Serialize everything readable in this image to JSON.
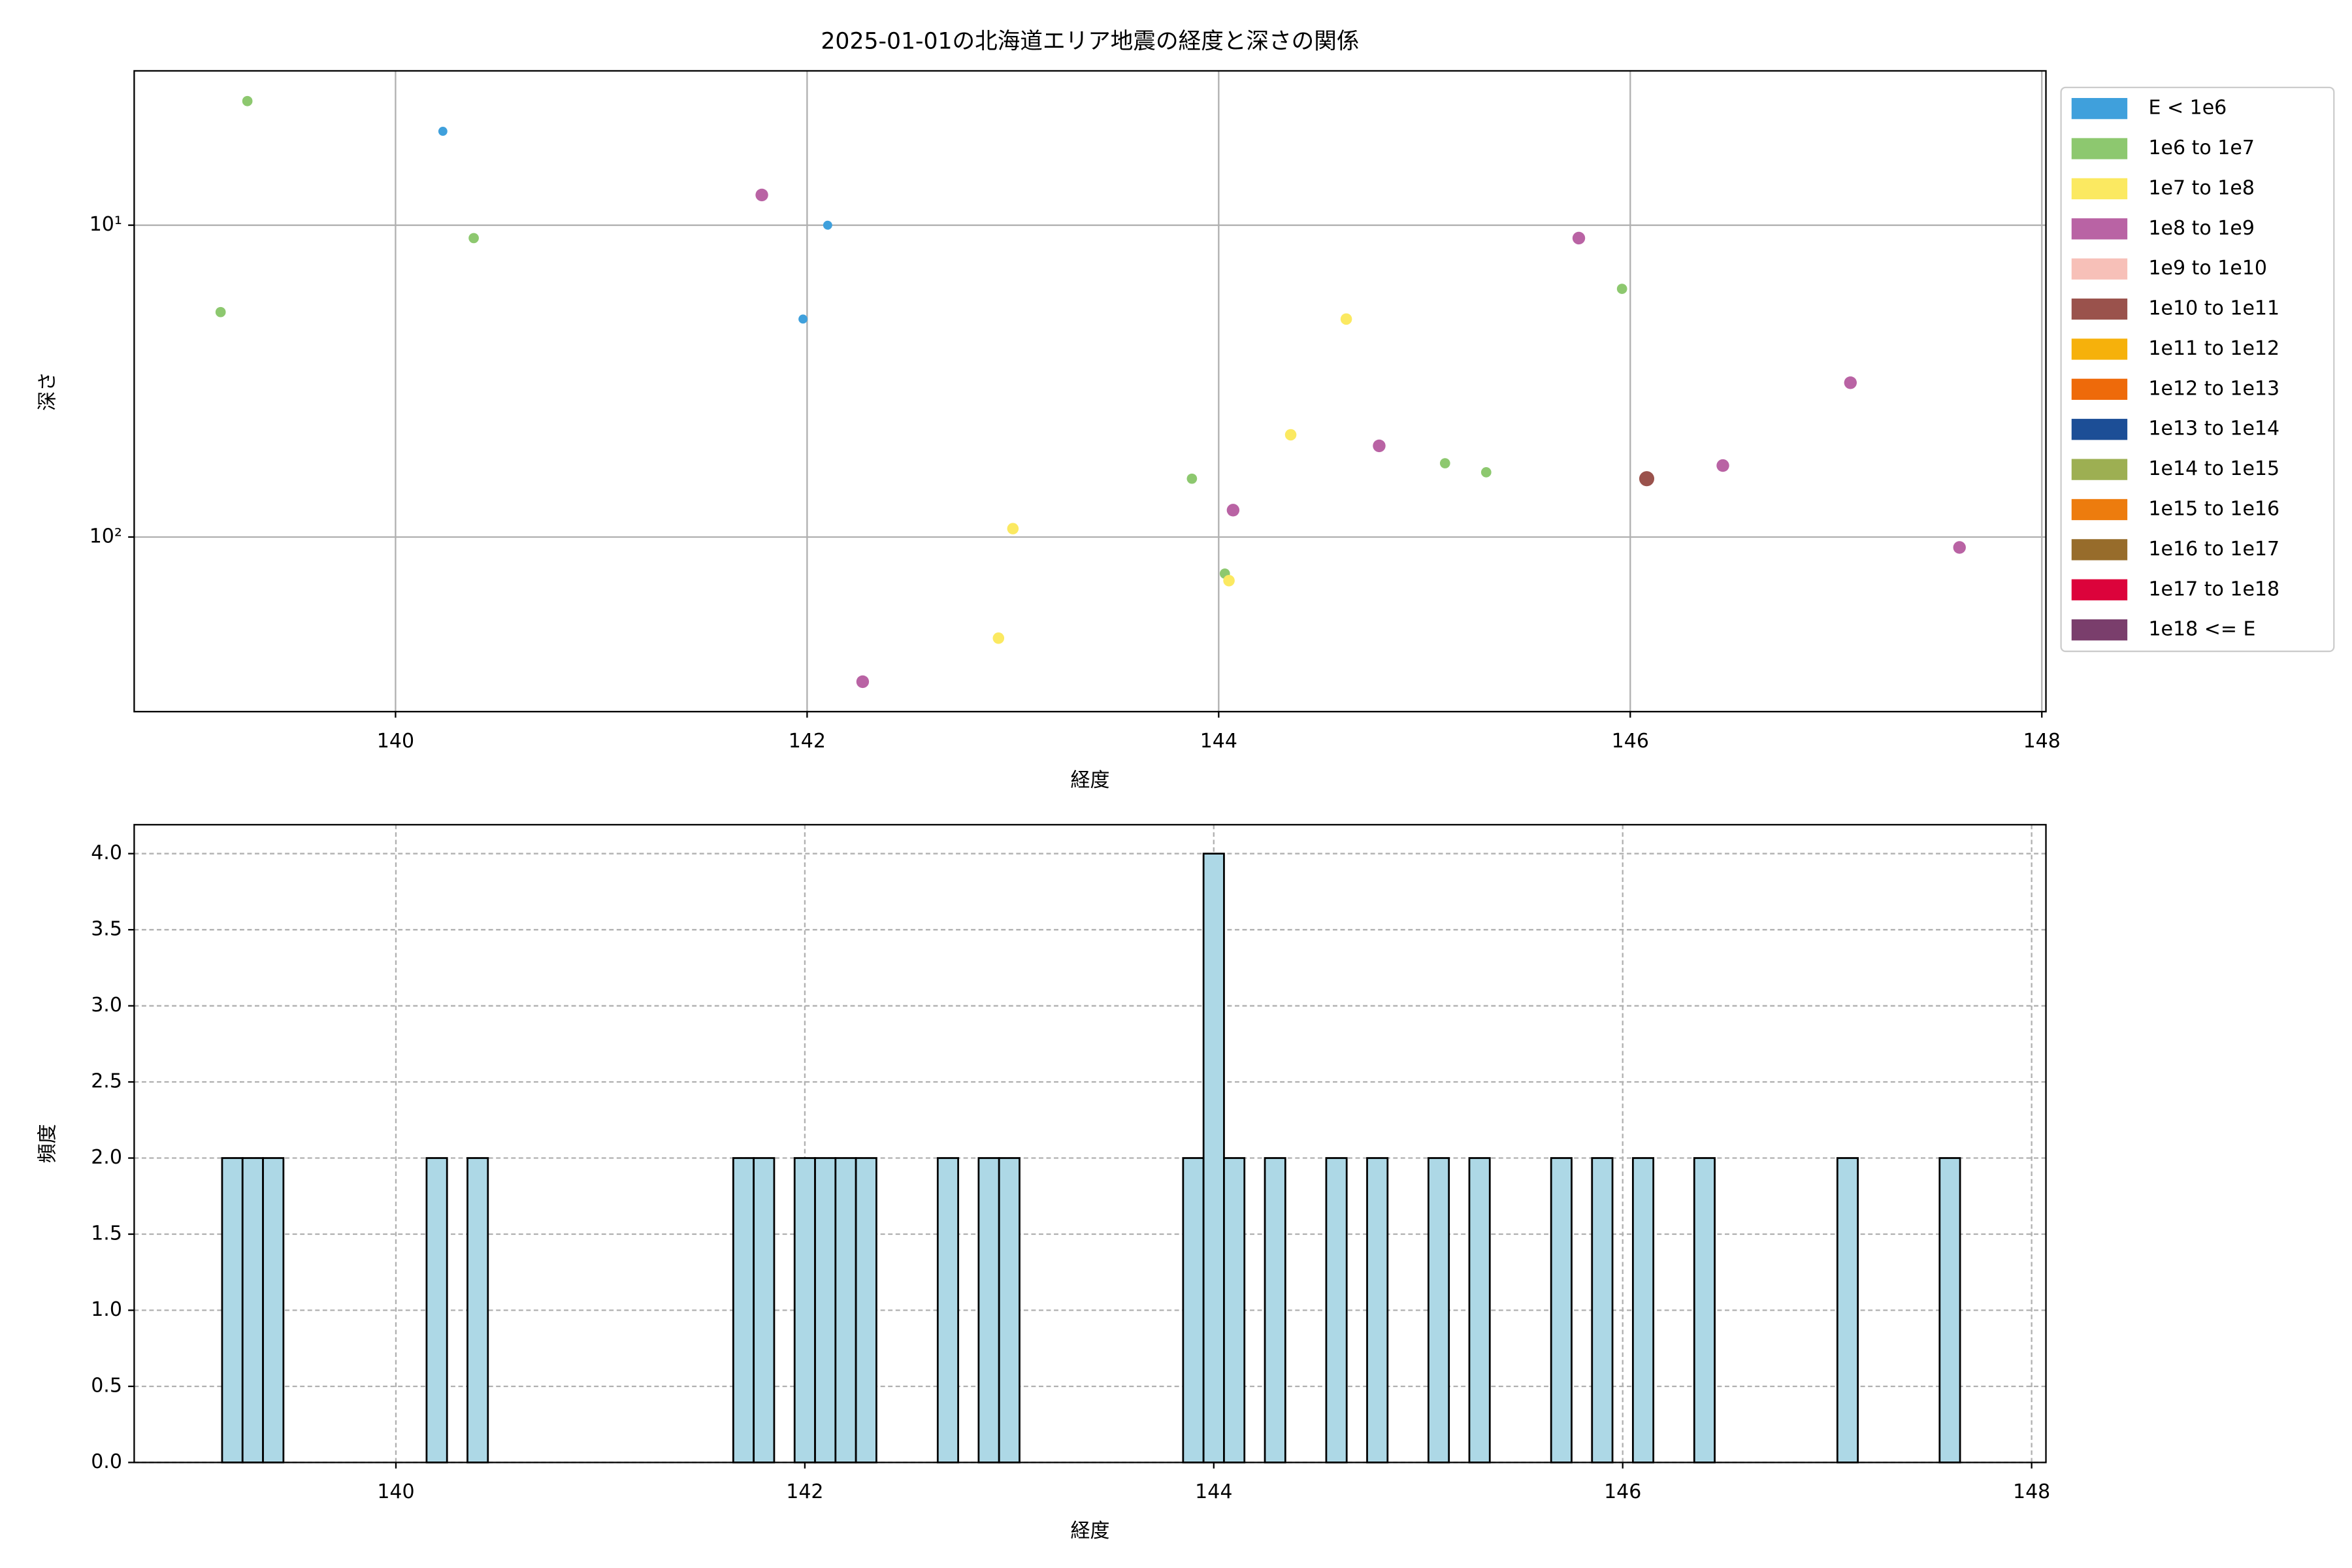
{
  "chart_data": [
    {
      "type": "scatter",
      "title": "2025-01-01の北海道エリア地震の経度と深さの関係",
      "xlabel": "経度",
      "ylabel": "深さ",
      "xlim": [
        138.73,
        148.02
      ],
      "xticks": [
        140,
        142,
        144,
        146,
        148
      ],
      "ylim": [
        3.2,
        363
      ],
      "yticks": [
        {
          "value": 10,
          "label": "10¹"
        },
        {
          "value": 100,
          "label": "10²"
        }
      ],
      "yscale": "log",
      "y_inverted": true,
      "grid": true,
      "legend": "outside-right",
      "series": [
        {
          "name": "E < 1e6",
          "color": "#3fa0dc",
          "x": [
            140.23,
            142.1,
            141.98
          ],
          "values": [
            5,
            10,
            20
          ]
        },
        {
          "name": "1e6 to 1e7",
          "color": "#8dc86f",
          "x": [
            139.28,
            139.15,
            140.38,
            143.87,
            144.03,
            145.1,
            145.3,
            145.96
          ],
          "values": [
            4,
            19,
            11,
            65,
            131,
            58,
            62,
            16
          ]
        },
        {
          "name": "1e7 to 1e8",
          "color": "#fbe961",
          "x": [
            143.0,
            142.93,
            144.05,
            144.35,
            144.62
          ],
          "values": [
            94,
            211,
            138,
            47,
            20
          ]
        },
        {
          "name": "1e8 to 1e9",
          "color": "#b963a4",
          "x": [
            141.78,
            142.27,
            144.07,
            144.78,
            145.75,
            146.45,
            147.07,
            147.6
          ],
          "values": [
            8,
            291,
            82,
            51,
            11,
            59,
            32,
            108
          ]
        },
        {
          "name": "1e9 to 1e10",
          "color": "#f7c0b8",
          "x": [],
          "values": []
        },
        {
          "name": "1e10 to 1e11",
          "color": "#9a524c",
          "x": [
            146.08
          ],
          "values": [
            65
          ]
        },
        {
          "name": "1e11 to 1e12",
          "color": "#f6b10b",
          "x": [],
          "values": []
        },
        {
          "name": "1e12 to 1e13",
          "color": "#ee6a0a",
          "x": [],
          "values": []
        },
        {
          "name": "1e13 to 1e14",
          "color": "#1c4e96",
          "x": [],
          "values": []
        },
        {
          "name": "1e14 to 1e15",
          "color": "#9daf52",
          "x": [],
          "values": []
        },
        {
          "name": "1e15 to 1e16",
          "color": "#ed7c0e",
          "x": [],
          "values": []
        },
        {
          "name": "1e16 to 1e17",
          "color": "#976c2b",
          "x": [],
          "values": []
        },
        {
          "name": "1e17 to 1e18",
          "color": "#dc033b",
          "x": [],
          "values": []
        },
        {
          "name": "1e18 <= E",
          "color": "#7a3e6c",
          "x": [],
          "values": []
        }
      ]
    },
    {
      "type": "histogram",
      "xlabel": "経度",
      "ylabel": "頻度",
      "xlim": [
        138.72,
        148.07
      ],
      "xticks": [
        140,
        142,
        144,
        146,
        148
      ],
      "ylim": [
        0,
        4.19
      ],
      "yticks": [
        {
          "value": 0,
          "label": "0.0"
        },
        {
          "value": 0.5,
          "label": "0.5"
        },
        {
          "value": 1,
          "label": "1.0"
        },
        {
          "value": 1.5,
          "label": "1.5"
        },
        {
          "value": 2,
          "label": "2.0"
        },
        {
          "value": 2.5,
          "label": "2.5"
        },
        {
          "value": 3,
          "label": "3.0"
        },
        {
          "value": 3.5,
          "label": "3.5"
        },
        {
          "value": 4,
          "label": "4.0"
        }
      ],
      "grid": true,
      "color": "#add8e6",
      "edgecolor": "#000000",
      "bins": [
        139.15,
        139.25,
        139.35,
        139.45,
        139.55,
        139.65,
        139.75,
        139.85,
        139.95,
        140.05,
        140.15,
        140.25,
        140.35,
        140.45,
        140.55,
        140.65,
        140.75,
        140.85,
        140.95,
        141.05,
        141.15,
        141.25,
        141.35,
        141.45,
        141.55,
        141.65,
        141.75,
        141.85,
        141.95,
        142.05,
        142.15,
        142.25,
        142.35,
        142.45,
        142.55,
        142.65,
        142.75,
        142.85,
        142.95,
        143.05,
        143.15,
        143.25,
        143.35,
        143.45,
        143.55,
        143.65,
        143.75,
        143.85,
        143.95,
        144.05,
        144.15,
        144.25,
        144.35,
        144.45,
        144.55,
        144.65,
        144.75,
        144.85,
        144.95,
        145.05,
        145.15,
        145.25,
        145.35,
        145.45,
        145.55,
        145.65,
        145.75,
        145.85,
        145.95,
        146.05,
        146.15,
        146.25,
        146.35,
        146.45,
        146.55,
        146.65,
        146.75,
        146.85,
        146.95,
        147.05,
        147.15,
        147.25,
        147.35,
        147.45,
        147.55,
        147.65
      ],
      "counts": [
        2,
        2,
        2,
        0,
        0,
        0,
        0,
        0,
        0,
        0,
        2,
        0,
        2,
        0,
        0,
        0,
        0,
        0,
        0,
        0,
        0,
        0,
        0,
        0,
        0,
        2,
        2,
        0,
        2,
        2,
        2,
        2,
        0,
        0,
        0,
        2,
        0,
        2,
        2,
        0,
        0,
        0,
        0,
        0,
        0,
        0,
        0,
        2,
        4,
        2,
        0,
        2,
        0,
        0,
        2,
        0,
        2,
        0,
        0,
        2,
        0,
        2,
        0,
        0,
        0,
        2,
        0,
        2,
        0,
        2,
        0,
        0,
        2,
        0,
        0,
        0,
        0,
        0,
        0,
        2,
        0,
        0,
        0,
        0,
        2
      ]
    }
  ]
}
